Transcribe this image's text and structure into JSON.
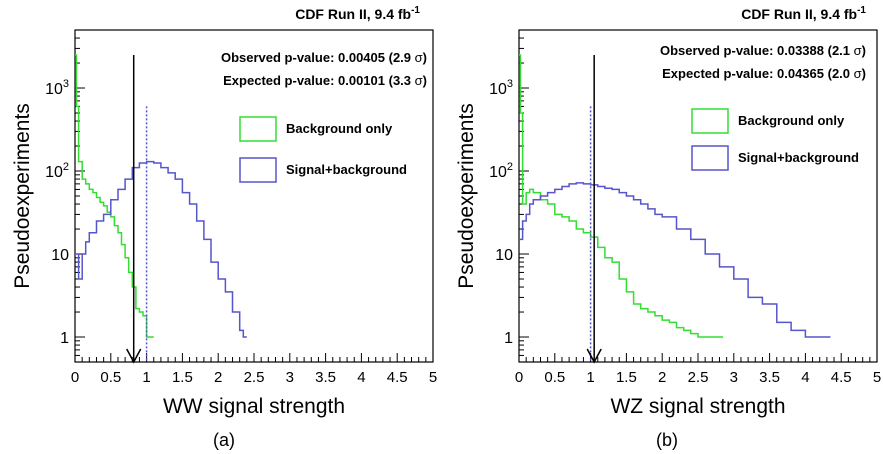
{
  "figure": {
    "panels": [
      "(a)",
      "(b)"
    ]
  },
  "chart_data": [
    {
      "type": "line",
      "panel_label": "(a)",
      "header": "CDF Run II, 9.4 fb",
      "header_sup": "-1",
      "xlabel": "WW signal strength",
      "ylabel": "Pseudoexperiments",
      "xlim": [
        0,
        5
      ],
      "ylim": [
        0.5,
        5000
      ],
      "yscale": "log",
      "x_ticks": [
        "0",
        "0.5",
        "1",
        "1.5",
        "2",
        "2.5",
        "3",
        "3.5",
        "4",
        "4.5",
        "5"
      ],
      "y_ticks": [
        {
          "value": 1,
          "label": "1"
        },
        {
          "value": 10,
          "label": "10"
        },
        {
          "value": 100,
          "label": "10",
          "exp": "2"
        },
        {
          "value": 1000,
          "label": "10",
          "exp": "3"
        }
      ],
      "annotations": {
        "observed": {
          "text": "Observed p-value: 0.00405 (2.9 ",
          "sigma": "σ",
          "close": ")"
        },
        "expected": {
          "text": "Expected p-value: 0.00101 (3.3 ",
          "sigma": "σ",
          "close": ")"
        }
      },
      "observed_value": 0.82,
      "expected_value": 1.0,
      "legend_position": "right",
      "series": [
        {
          "name": "Background only",
          "color": "#33dd33",
          "x": [
            0.0,
            0.02,
            0.05,
            0.1,
            0.15,
            0.2,
            0.25,
            0.3,
            0.35,
            0.4,
            0.45,
            0.5,
            0.55,
            0.6,
            0.65,
            0.7,
            0.75,
            0.8,
            0.85,
            0.9,
            0.95,
            1.0,
            1.05
          ],
          "y": [
            2500,
            600,
            130,
            80,
            70,
            60,
            55,
            48,
            42,
            38,
            32,
            28,
            22,
            18,
            13,
            9,
            6,
            4,
            2.2,
            2,
            1.8,
            1,
            1
          ]
        },
        {
          "name": "Signal+background",
          "color": "#5555cc",
          "x": [
            0.0,
            0.05,
            0.1,
            0.15,
            0.2,
            0.3,
            0.4,
            0.5,
            0.6,
            0.7,
            0.8,
            0.9,
            1.0,
            1.1,
            1.2,
            1.3,
            1.4,
            1.5,
            1.6,
            1.7,
            1.8,
            1.9,
            2.0,
            2.1,
            2.2,
            2.3,
            2.35
          ],
          "y": [
            10,
            5,
            10,
            14,
            18,
            25,
            30,
            45,
            60,
            80,
            110,
            125,
            130,
            125,
            110,
            95,
            80,
            55,
            40,
            25,
            15,
            8,
            5,
            3.5,
            2,
            1.2,
            1
          ]
        }
      ]
    },
    {
      "type": "line",
      "panel_label": "(b)",
      "header": "CDF Run II, 9.4 fb",
      "header_sup": "-1",
      "xlabel": "WZ signal strength",
      "ylabel": "Pseudoexperiments",
      "xlim": [
        0,
        5
      ],
      "ylim": [
        0.5,
        5000
      ],
      "yscale": "log",
      "x_ticks": [
        "0",
        "0.5",
        "1",
        "1.5",
        "2",
        "2.5",
        "3",
        "3.5",
        "4",
        "4.5",
        "5"
      ],
      "y_ticks": [
        {
          "value": 1,
          "label": "1"
        },
        {
          "value": 10,
          "label": "10"
        },
        {
          "value": 100,
          "label": "10",
          "exp": "2"
        },
        {
          "value": 1000,
          "label": "10",
          "exp": "3"
        }
      ],
      "annotations": {
        "observed": {
          "text": "Observed p-value: 0.03388 (2.1 ",
          "sigma": "σ",
          "close": ")"
        },
        "expected": {
          "text": "Expected p-value: 0.04365 (2.0 ",
          "sigma": "σ",
          "close": ")"
        }
      },
      "observed_value": 1.05,
      "expected_value": 1.0,
      "legend_position": "right",
      "series": [
        {
          "name": "Background only",
          "color": "#33dd33",
          "x": [
            0.0,
            0.02,
            0.05,
            0.1,
            0.15,
            0.2,
            0.3,
            0.4,
            0.5,
            0.6,
            0.7,
            0.8,
            0.9,
            1.0,
            1.1,
            1.2,
            1.3,
            1.4,
            1.5,
            1.6,
            1.7,
            1.8,
            1.9,
            2.0,
            2.1,
            2.2,
            2.3,
            2.4,
            2.5,
            2.6,
            2.7,
            2.8
          ],
          "y": [
            2500,
            500,
            40,
            55,
            60,
            55,
            45,
            40,
            30,
            28,
            25,
            20,
            18,
            16,
            12,
            9,
            8,
            5,
            3.5,
            2.5,
            2.2,
            2,
            1.8,
            1.6,
            1.5,
            1.3,
            1.2,
            1.1,
            1,
            1,
            1,
            1
          ]
        },
        {
          "name": "Signal+background",
          "color": "#5555cc",
          "x": [
            0.0,
            0.05,
            0.1,
            0.15,
            0.2,
            0.3,
            0.4,
            0.5,
            0.6,
            0.7,
            0.8,
            0.9,
            1.0,
            1.1,
            1.2,
            1.3,
            1.4,
            1.5,
            1.6,
            1.7,
            1.8,
            1.9,
            2.0,
            2.2,
            2.4,
            2.6,
            2.8,
            3.0,
            3.2,
            3.4,
            3.6,
            3.8,
            4.0,
            4.2,
            4.3
          ],
          "y": [
            15,
            25,
            30,
            40,
            45,
            50,
            55,
            60,
            65,
            70,
            72,
            70,
            68,
            65,
            62,
            60,
            55,
            50,
            45,
            40,
            35,
            30,
            28,
            20,
            15,
            10,
            7,
            5,
            3,
            2.5,
            1.5,
            1.2,
            1,
            1,
            1
          ]
        }
      ]
    }
  ]
}
